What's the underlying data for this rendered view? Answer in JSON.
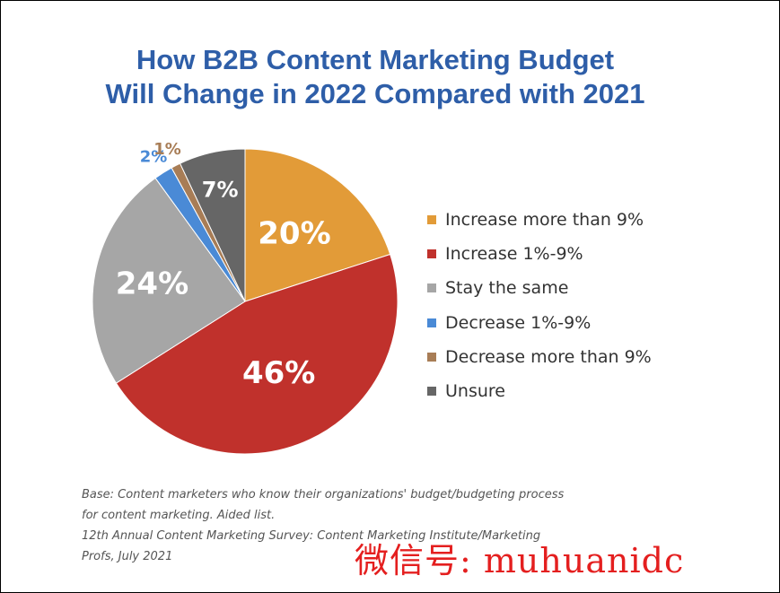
{
  "chart_data": {
    "type": "pie",
    "title_lines": [
      "How B2B Content Marketing Budget",
      "Will Change in 2022 Compared with 2021"
    ],
    "slices": [
      {
        "label": "Increase more than 9%",
        "value": 20,
        "display": "20%",
        "color": "#e29b38"
      },
      {
        "label": "Increase 1%-9%",
        "value": 46,
        "display": "46%",
        "color": "#c0312c"
      },
      {
        "label": "Stay the same",
        "value": 24,
        "display": "24%",
        "color": "#a6a6a6"
      },
      {
        "label": "Decrease 1%-9%",
        "value": 2,
        "display": "2%",
        "color": "#4a8ad6"
      },
      {
        "label": "Decrease more than 9%",
        "value": 1,
        "display": "1%",
        "color": "#a87d56"
      },
      {
        "label": "Unsure",
        "value": 7,
        "display": "7%",
        "color": "#666666"
      }
    ],
    "legend_position": "right"
  },
  "footnote": {
    "lines": [
      "Base: Content marketers who know their organizations' budget/budgeting process",
      "for content marketing. Aided list.",
      "12th Annual Content Marketing Survey: Content Marketing Institute/Marketing",
      "Profs, July 2021"
    ]
  },
  "watermark": "微信号: muhuanidc"
}
